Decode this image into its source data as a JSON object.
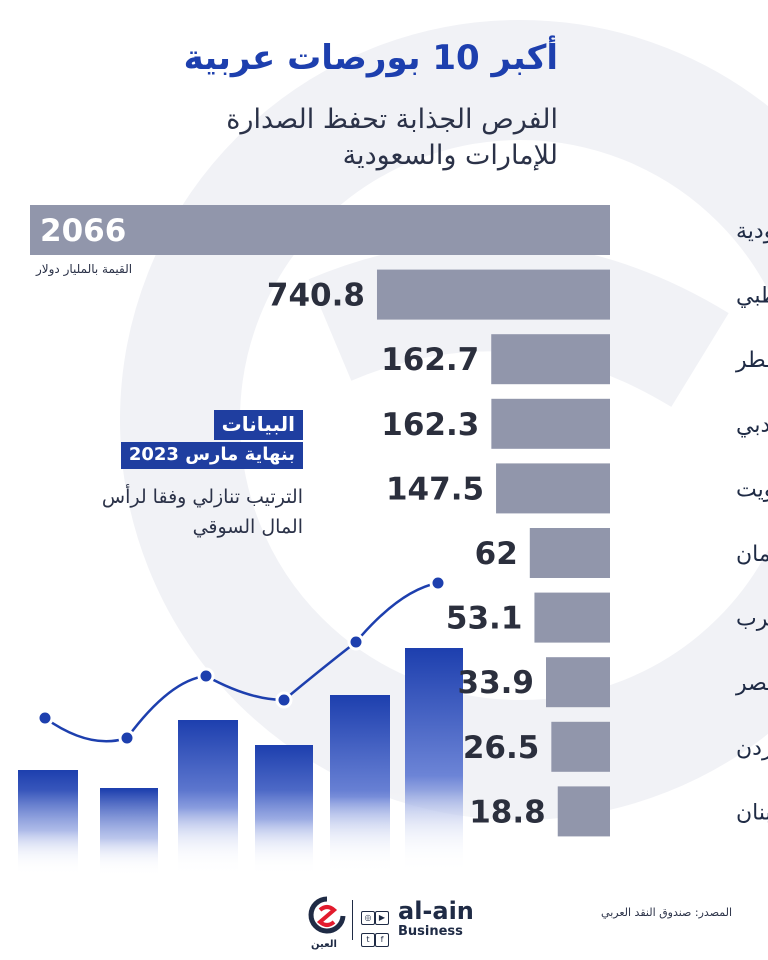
{
  "header": {
    "title": "أكبر 10 بورصات عربية",
    "subtitle": "الفرص الجذابة تحفظ الصدارة للإمارات والسعودية"
  },
  "unit_note": "القيمة بالمليار دولار",
  "info": {
    "line1": "البيانات",
    "line2": "بنهاية مارس 2023",
    "rank_note": "الترتيب تنازلي وفقا لرأس المال السوقي"
  },
  "footer": {
    "source": "المصدر: صندوق النقد العربي",
    "brand_name": "al-ain",
    "brand_sub": "Business",
    "brand_arabic": "العين"
  },
  "colors": {
    "title": "#1d3fae",
    "bar": "#9196ab",
    "accent": "#1f3ea0"
  },
  "chart_data": {
    "type": "bar",
    "orientation": "horizontal",
    "categories": [
      "السعودية",
      "أبوظبي",
      "قطر",
      "دبي",
      "الكويت",
      "عمان",
      "المغرب",
      "مصر",
      "الأردن",
      "لبنان"
    ],
    "values": [
      2066,
      740.8,
      162.7,
      162.3,
      147.5,
      62,
      53.1,
      33.9,
      26.5,
      18.8
    ],
    "value_labels": [
      "2066",
      "740.8",
      "162.7",
      "162.3",
      "147.5",
      "62",
      "53.1",
      "33.9",
      "26.5",
      "18.8"
    ],
    "grid": false,
    "legend": "none"
  }
}
